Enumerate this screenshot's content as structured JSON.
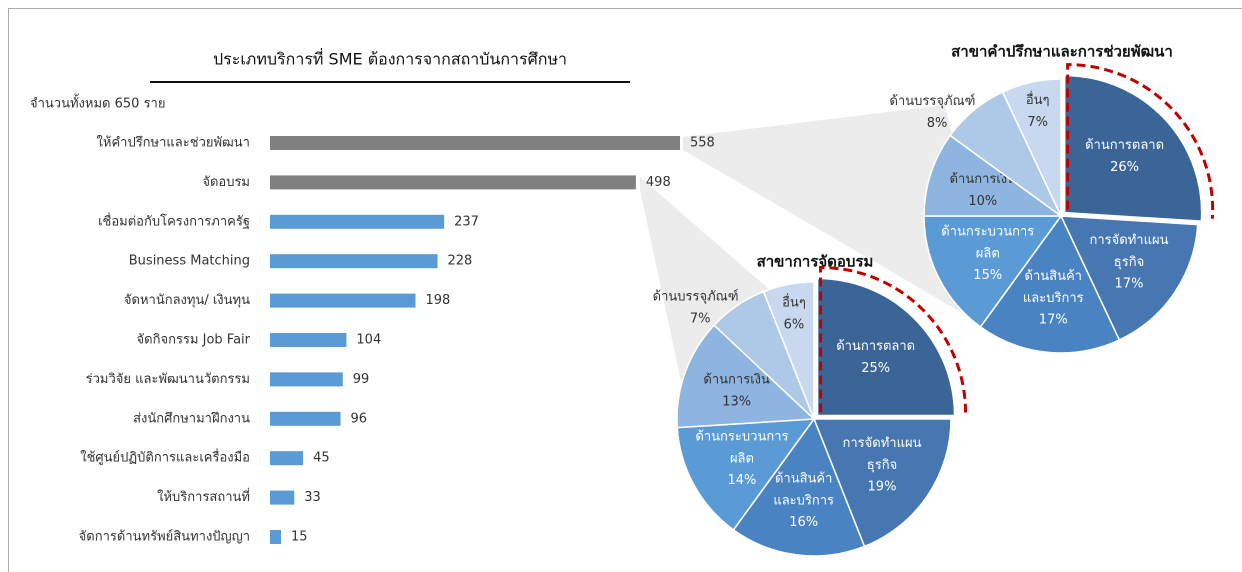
{
  "chart_data": [
    {
      "type": "bar",
      "title": "ประเภทบริการที่ SME ต้องการจากสถาบันการศึกษา",
      "subtitle": "จำนวนทั้งหมด 650 ราย",
      "categories": [
        "ให้คำปรึกษาและช่วยพัฒนา",
        "จัดอบรม",
        "เชื่อมต่อกับโครงการภาครัฐ",
        "Business Matching",
        "จัดหานักลงทุน/ เงินทุน",
        "จัดกิจกรรม Job Fair",
        "ร่วมวิจัย และพัฒนานวัตกรรม",
        "ส่งนักศึกษามาฝึกงาน",
        "ใช้ศูนย์ปฏิบัติการและเครื่องมือ",
        "ให้บริการสถานที่",
        "จัดการด้านทรัพย์สินทางปัญญา"
      ],
      "values": [
        558,
        498,
        237,
        228,
        198,
        104,
        99,
        96,
        45,
        33,
        15
      ],
      "colors": [
        "#808080",
        "#808080",
        "#5b9bd5",
        "#5b9bd5",
        "#5b9bd5",
        "#5b9bd5",
        "#5b9bd5",
        "#5b9bd5",
        "#5b9bd5",
        "#5b9bd5",
        "#5b9bd5"
      ]
    },
    {
      "type": "pie",
      "title": "สาขาคำปรึกษาและการช่วยพัฒนา",
      "categories": [
        "ด้านการตลาด",
        "การจัดทำแผน\nธุรกิจ",
        "ด้านสินค้า\nและบริการ",
        "ด้านกระบวนการ\nผลิต",
        "ด้านการเงิน",
        "ด้านบรรจุภัณฑ์",
        "อื่นๆ"
      ],
      "values": [
        26,
        17,
        17,
        15,
        10,
        8,
        7
      ],
      "value_labels": [
        "26%",
        "17%",
        "17%",
        "15%",
        "10%",
        "8%",
        "7%"
      ],
      "colors": [
        "#3b6596",
        "#4677b0",
        "#4a83c2",
        "#5b9bd5",
        "#8eb4e0",
        "#aec8e8",
        "#c8d9ef"
      ]
    },
    {
      "type": "pie",
      "title": "สาขาการจัดอบรม",
      "categories": [
        "ด้านการตลาด",
        "การจัดทำแผน\nธุรกิจ",
        "ด้านสินค้า\nและบริการ",
        "ด้านกระบวนการ\nผลิต",
        "ด้านการเงิน",
        "ด้านบรรจุภัณฑ์",
        "อื่นๆ"
      ],
      "values": [
        25,
        19,
        16,
        14,
        13,
        7,
        6
      ],
      "value_labels": [
        "25%",
        "19%",
        "16%",
        "14%",
        "13%",
        "7%",
        "6%"
      ],
      "colors": [
        "#3b6596",
        "#4677b0",
        "#4a83c2",
        "#5b9bd5",
        "#8eb4e0",
        "#aec8e8",
        "#c8d9ef"
      ]
    }
  ]
}
